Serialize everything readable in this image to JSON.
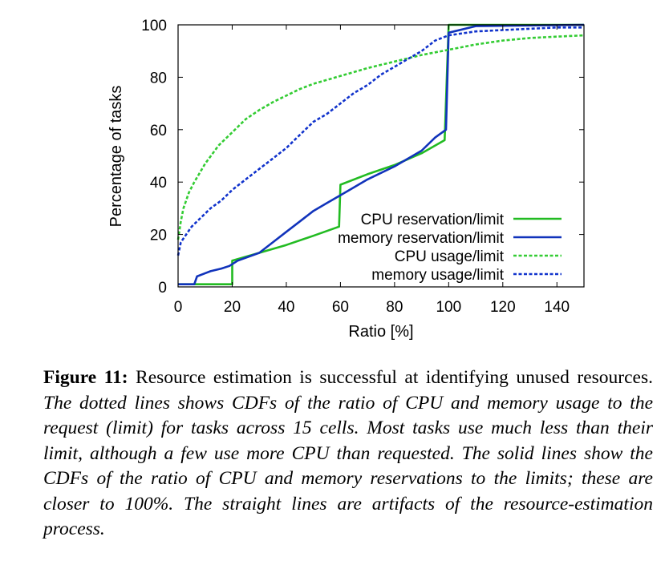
{
  "chart_data": {
    "type": "line",
    "xlabel": "Ratio [%]",
    "ylabel": "Percentage of tasks",
    "xlim": [
      0,
      150
    ],
    "ylim": [
      0,
      100
    ],
    "xticks": [
      0,
      20,
      40,
      60,
      80,
      100,
      120,
      140
    ],
    "yticks": [
      0,
      20,
      40,
      60,
      80,
      100
    ],
    "grid": false,
    "legend_position": "bottom-right",
    "series": [
      {
        "name": "CPU reservation/limit",
        "color": "#22bb22",
        "style": "solid",
        "points": [
          [
            0,
            1
          ],
          [
            20,
            1
          ],
          [
            20,
            10
          ],
          [
            30,
            13
          ],
          [
            40,
            16
          ],
          [
            50,
            19.5
          ],
          [
            59.5,
            23
          ],
          [
            60,
            39
          ],
          [
            70,
            43
          ],
          [
            80,
            46.5
          ],
          [
            90,
            51
          ],
          [
            98.5,
            56
          ],
          [
            100,
            100
          ],
          [
            150,
            100
          ]
        ]
      },
      {
        "name": "memory reservation/limit",
        "color": "#1133bb",
        "style": "solid",
        "points": [
          [
            0,
            1
          ],
          [
            6,
            1
          ],
          [
            7,
            4
          ],
          [
            12,
            6
          ],
          [
            16,
            7
          ],
          [
            19,
            8
          ],
          [
            22,
            10
          ],
          [
            30,
            13
          ],
          [
            35,
            17
          ],
          [
            40,
            21
          ],
          [
            45,
            25
          ],
          [
            50,
            29
          ],
          [
            55,
            32
          ],
          [
            60,
            35
          ],
          [
            65,
            38
          ],
          [
            70,
            41
          ],
          [
            80,
            46
          ],
          [
            90,
            52
          ],
          [
            95,
            57
          ],
          [
            99,
            60
          ],
          [
            100,
            97
          ],
          [
            110,
            99.5
          ],
          [
            150,
            100
          ]
        ]
      },
      {
        "name": "CPU usage/limit",
        "color": "#33cc33",
        "style": "dotted",
        "points": [
          [
            0,
            18
          ],
          [
            1,
            25
          ],
          [
            2,
            30
          ],
          [
            4,
            36
          ],
          [
            6,
            40
          ],
          [
            10,
            47
          ],
          [
            15,
            54
          ],
          [
            20,
            59
          ],
          [
            25,
            64
          ],
          [
            30,
            67.5
          ],
          [
            35,
            70.5
          ],
          [
            40,
            73
          ],
          [
            45,
            75.5
          ],
          [
            50,
            77.5
          ],
          [
            60,
            80.5
          ],
          [
            70,
            83.5
          ],
          [
            80,
            86
          ],
          [
            90,
            88.5
          ],
          [
            100,
            90.5
          ],
          [
            110,
            92.5
          ],
          [
            120,
            94
          ],
          [
            130,
            95
          ],
          [
            140,
            95.5
          ],
          [
            150,
            96
          ]
        ]
      },
      {
        "name": "memory usage/limit",
        "color": "#1133cc",
        "style": "dotted",
        "points": [
          [
            0,
            12
          ],
          [
            1,
            17
          ],
          [
            3,
            20
          ],
          [
            5,
            23
          ],
          [
            8,
            26
          ],
          [
            12,
            30
          ],
          [
            16,
            33
          ],
          [
            20,
            37
          ],
          [
            25,
            41
          ],
          [
            30,
            45
          ],
          [
            35,
            49
          ],
          [
            40,
            53
          ],
          [
            45,
            58
          ],
          [
            50,
            63
          ],
          [
            55,
            66
          ],
          [
            60,
            70
          ],
          [
            65,
            74
          ],
          [
            70,
            77
          ],
          [
            75,
            81
          ],
          [
            80,
            84
          ],
          [
            85,
            87
          ],
          [
            90,
            90
          ],
          [
            95,
            94
          ],
          [
            100,
            96
          ],
          [
            110,
            97.5
          ],
          [
            120,
            98
          ],
          [
            130,
            98.5
          ],
          [
            140,
            99
          ],
          [
            150,
            99
          ]
        ]
      }
    ]
  },
  "caption": {
    "label": "Figure 11:",
    "plain": " Resource estimation is successful at identifying unused resources. ",
    "italic": "The dotted lines shows CDFs of the ratio of CPU and memory usage to the request (limit) for tasks across 15 cells. Most tasks use much less than their limit, although a few use more CPU than requested. The solid lines show the CDFs of the ratio of CPU and memory reservations to the limits; these are closer to 100%. The straight lines are artifacts of the resource-estimation process."
  }
}
